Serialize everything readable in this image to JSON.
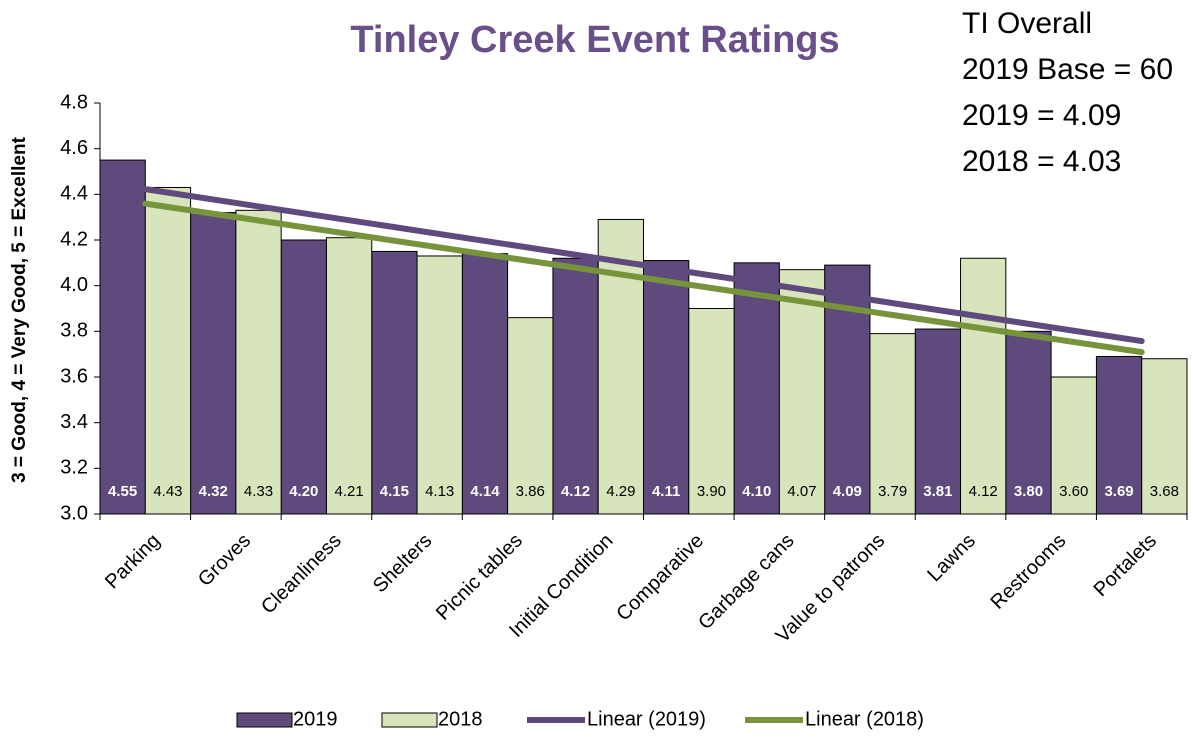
{
  "chart_data": {
    "type": "bar",
    "title": "Tinley Creek Event Ratings",
    "y_label": "3 = Good, 4 = Very Good, 5 = Excellent",
    "annotations": [
      "TI Overall",
      "2019 Base = 60",
      "2019 = 4.09",
      "2018 = 4.03"
    ],
    "categories": [
      "Parking",
      "Groves",
      "Cleanliness",
      "Shelters",
      "Picnic tables",
      "Initial Condition",
      "Comparative",
      "Garbage cans",
      "Value to patrons",
      "Lawns",
      "Restrooms",
      "Portalets"
    ],
    "series": [
      {
        "name": "2019",
        "color": "#5e4a7d",
        "label_color": "#ffffff",
        "values": [
          4.55,
          4.32,
          4.2,
          4.15,
          4.14,
          4.12,
          4.11,
          4.1,
          4.09,
          3.81,
          3.8,
          3.69
        ],
        "value_labels": [
          "4.55",
          "4.32",
          "4.20",
          "4.15",
          "4.14",
          "4.12",
          "4.11",
          "4.10",
          "4.09",
          "3.81",
          "3.80",
          "3.69"
        ]
      },
      {
        "name": "2018",
        "color": "#d8e4bc",
        "label_color": "#000000",
        "values": [
          4.43,
          4.33,
          4.21,
          4.13,
          3.86,
          4.29,
          3.9,
          4.07,
          3.79,
          4.12,
          3.6,
          3.68
        ],
        "value_labels": [
          "4.43",
          "4.33",
          "4.21",
          "4.13",
          "3.86",
          "4.29",
          "3.90",
          "4.07",
          "3.79",
          "4.12",
          "3.60",
          "3.68"
        ]
      }
    ],
    "trendlines": [
      {
        "name": "Linear (2019)",
        "series": 0,
        "color": "#5e4a7d"
      },
      {
        "name": "Linear (2018)",
        "series": 1,
        "color": "#77933c"
      }
    ],
    "ylim": [
      3,
      4.8
    ],
    "yticks": [
      {
        "value": 3,
        "label": "3.0"
      },
      {
        "value": 3.2,
        "label": "3.2"
      },
      {
        "value": 3.4,
        "label": "3.4"
      },
      {
        "value": 3.6,
        "label": "3.6"
      },
      {
        "value": 3.8,
        "label": "3.8"
      },
      {
        "value": 4,
        "label": "4.0"
      },
      {
        "value": 4.2,
        "label": "4.2"
      },
      {
        "value": 4.4,
        "label": "4.4"
      },
      {
        "value": 4.6,
        "label": "4.6"
      },
      {
        "value": 4.8,
        "label": "4.8"
      }
    ]
  }
}
